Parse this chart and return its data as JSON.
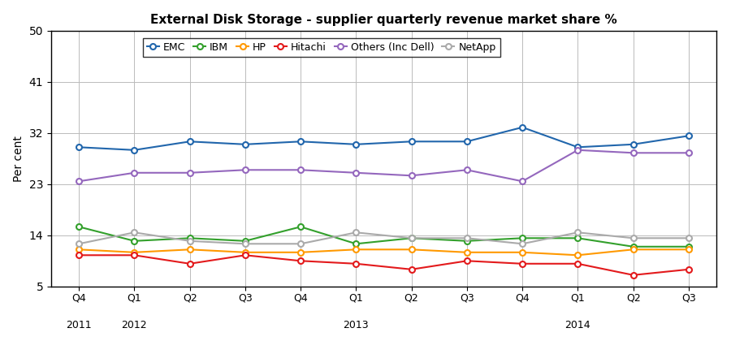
{
  "title": "External Disk Storage - supplier quarterly revenue market share %",
  "ylabel": "Per cent",
  "ylim": [
    5,
    50
  ],
  "yticks": [
    5,
    14,
    23,
    32,
    41,
    50
  ],
  "q_labels": [
    "Q4",
    "Q1",
    "Q2",
    "Q3",
    "Q4",
    "Q1",
    "Q2",
    "Q3",
    "Q4",
    "Q1",
    "Q2",
    "Q3"
  ],
  "y_labels": [
    "2011",
    "2012",
    "",
    "",
    "",
    "2013",
    "",
    "",
    "",
    "2014",
    "",
    ""
  ],
  "series": {
    "EMC": {
      "color": "#2166ac",
      "values": [
        29.5,
        29.0,
        30.5,
        30.0,
        30.5,
        30.0,
        30.5,
        30.5,
        33.0,
        29.5,
        30.0,
        31.5
      ]
    },
    "IBM": {
      "color": "#33a02c",
      "values": [
        15.5,
        13.0,
        13.5,
        13.0,
        15.5,
        12.5,
        13.5,
        13.0,
        13.5,
        13.5,
        12.0,
        12.0
      ]
    },
    "HP": {
      "color": "#ff9900",
      "values": [
        11.5,
        11.0,
        11.5,
        11.0,
        11.0,
        11.5,
        11.5,
        11.0,
        11.0,
        10.5,
        11.5,
        11.5
      ]
    },
    "Hitachi": {
      "color": "#e31a1c",
      "values": [
        10.5,
        10.5,
        9.0,
        10.5,
        9.5,
        9.0,
        8.0,
        9.5,
        9.0,
        9.0,
        7.0,
        8.0
      ]
    },
    "Others (Inc Dell)": {
      "color": "#9467bd",
      "values": [
        23.5,
        25.0,
        25.0,
        25.5,
        25.5,
        25.0,
        24.5,
        25.5,
        23.5,
        29.0,
        28.5,
        28.5
      ]
    },
    "NetApp": {
      "color": "#aaaaaa",
      "values": [
        12.5,
        14.5,
        13.0,
        12.5,
        12.5,
        14.5,
        13.5,
        13.5,
        12.5,
        14.5,
        13.5,
        13.5
      ]
    }
  },
  "legend_order": [
    "EMC",
    "IBM",
    "HP",
    "Hitachi",
    "Others (Inc Dell)",
    "NetApp"
  ],
  "grid_color": "#bbbbbb",
  "bg_color": "#ffffff"
}
